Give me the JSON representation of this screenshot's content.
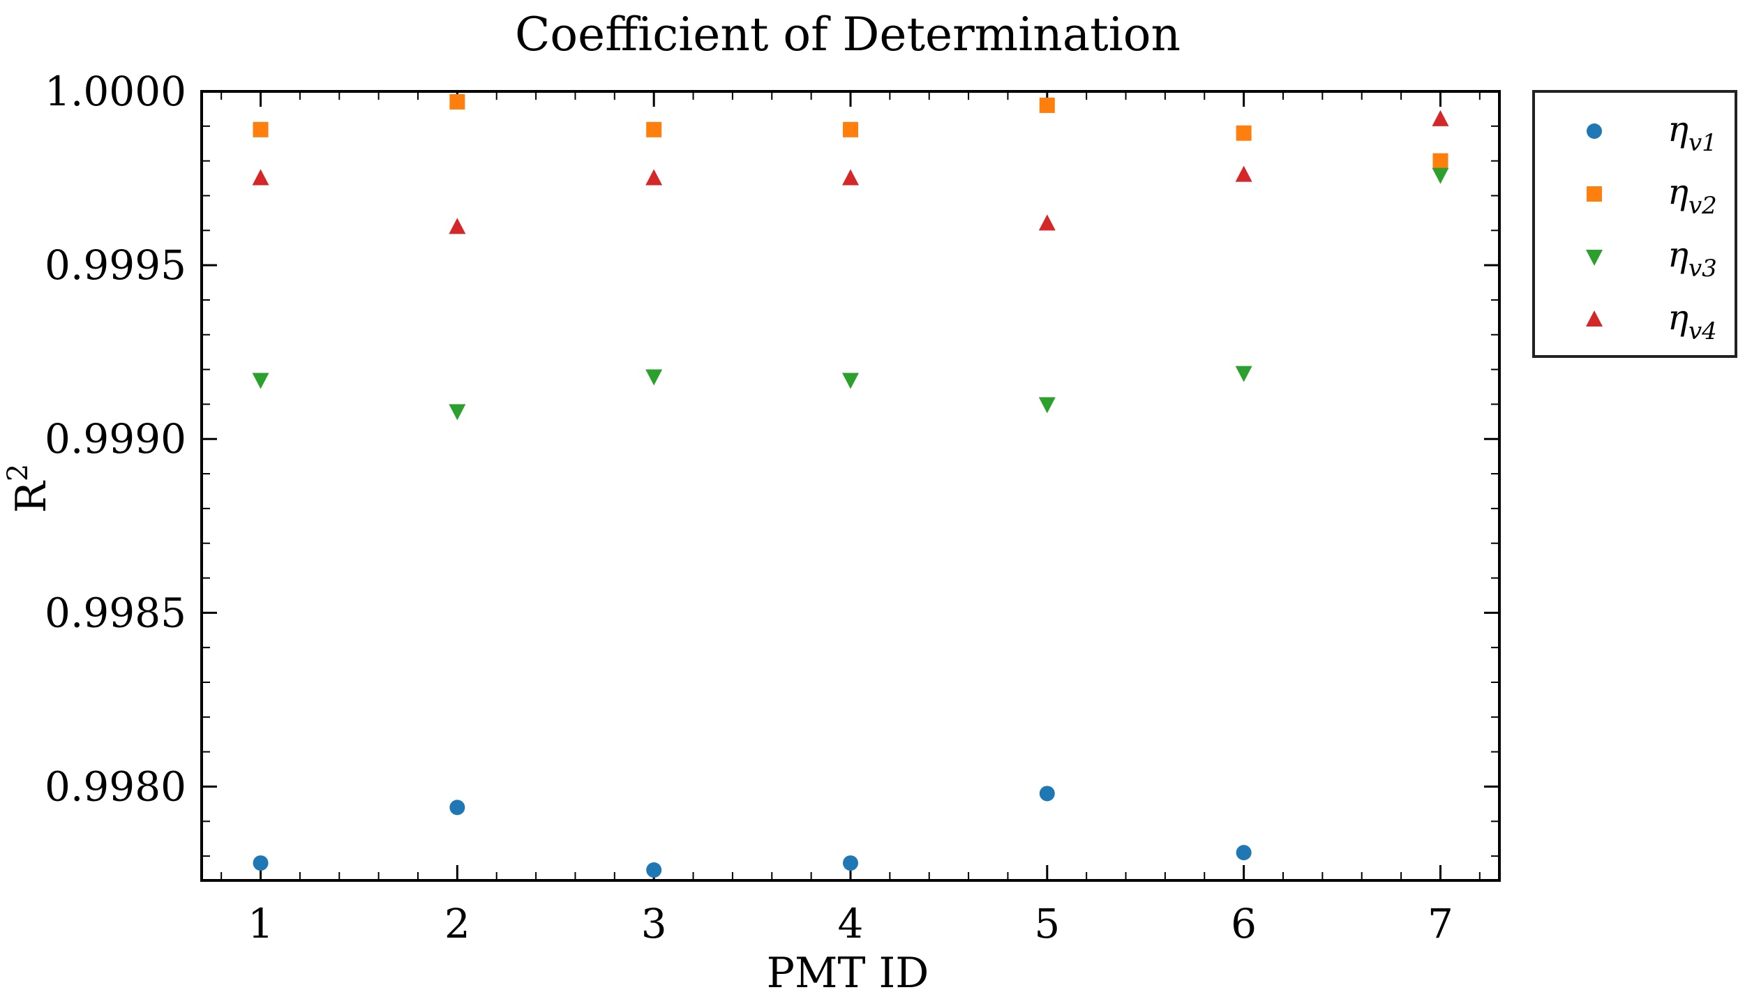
{
  "chart_data": {
    "type": "scatter",
    "title": "Coefficient of Determination",
    "xlabel": "PMT ID",
    "ylabel": "R",
    "ylabel_superscript": "2",
    "x": [
      1,
      2,
      3,
      4,
      5,
      6,
      7
    ],
    "xlim": [
      0.7,
      7.3
    ],
    "ylim": [
      0.99773,
      1.0
    ],
    "xticks": [
      "1",
      "2",
      "3",
      "4",
      "5",
      "6",
      "7"
    ],
    "yticks": [
      {
        "value": 1.0,
        "label": "1.0000"
      },
      {
        "value": 0.9995,
        "label": "0.9995"
      },
      {
        "value": 0.999,
        "label": "0.9990"
      },
      {
        "value": 0.9985,
        "label": "0.9985"
      },
      {
        "value": 0.998,
        "label": "0.9980"
      }
    ],
    "grid": false,
    "legend_placement": "outside-top-right",
    "series": [
      {
        "name": "η",
        "subscript": "v1",
        "marker": "circle",
        "color": "#1f77b4",
        "values": [
          0.99778,
          0.99794,
          0.99776,
          0.99778,
          0.99798,
          0.99781,
          null
        ]
      },
      {
        "name": "η",
        "subscript": "v2",
        "marker": "square",
        "color": "#ff7f0e",
        "values": [
          0.99989,
          0.99997,
          0.99989,
          0.99989,
          0.99996,
          0.99988,
          0.9998
        ]
      },
      {
        "name": "η",
        "subscript": "v3",
        "marker": "triangle-down",
        "color": "#2ca02c",
        "values": [
          0.99917,
          0.99908,
          0.99918,
          0.99917,
          0.9991,
          0.99919,
          0.99976
        ]
      },
      {
        "name": "η",
        "subscript": "v4",
        "marker": "triangle-up",
        "color": "#d62728",
        "values": [
          0.99975,
          0.99961,
          0.99975,
          0.99975,
          0.99962,
          0.99976,
          0.99992
        ]
      }
    ]
  }
}
